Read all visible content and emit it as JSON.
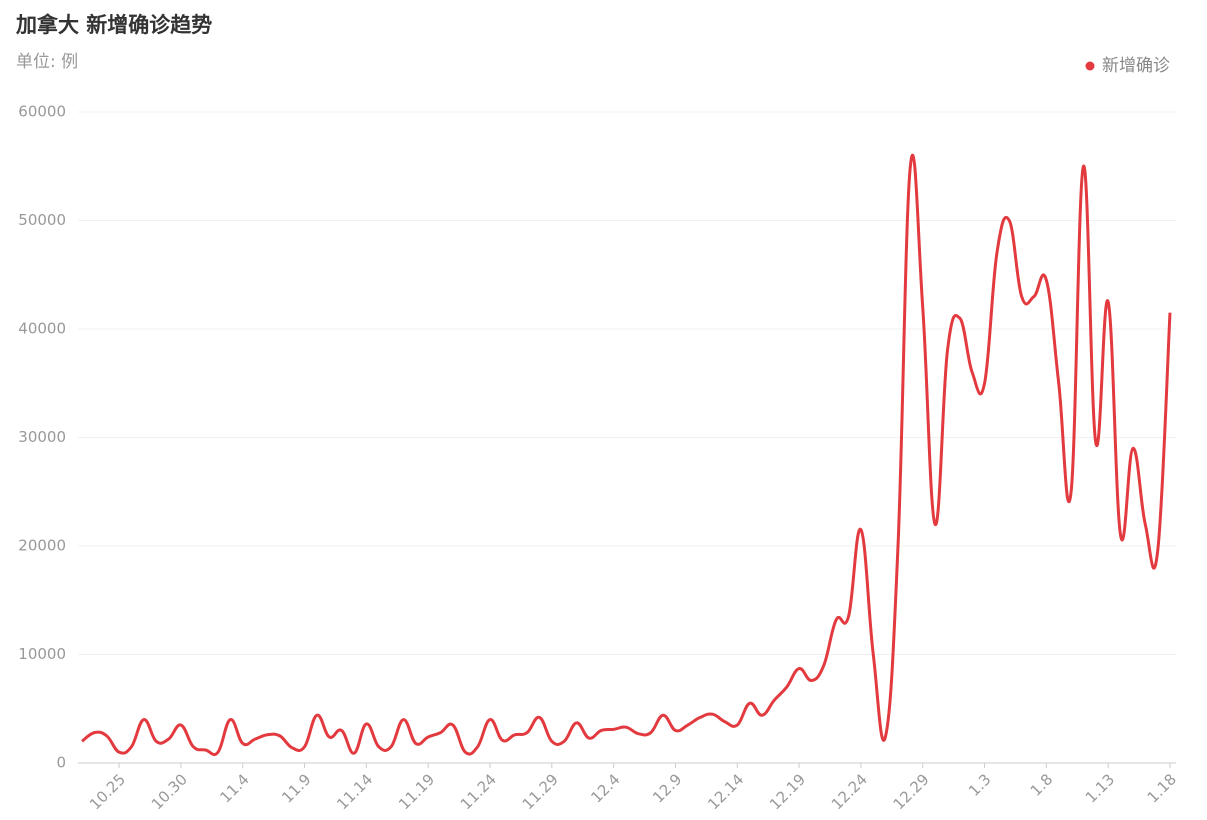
{
  "chart_data": {
    "type": "line",
    "title": "加拿大 新增确诊趋势",
    "subtitle": "单位: 例",
    "categories": [
      null,
      null,
      null,
      "10.25",
      null,
      null,
      null,
      null,
      "10.30",
      null,
      null,
      null,
      null,
      "11.4",
      null,
      null,
      null,
      null,
      "11.9",
      null,
      null,
      null,
      null,
      "11.14",
      null,
      null,
      null,
      null,
      "11.19",
      null,
      null,
      null,
      null,
      "11.24",
      null,
      null,
      null,
      null,
      "11.29",
      null,
      null,
      null,
      null,
      "12.4",
      null,
      null,
      null,
      null,
      "12.9",
      null,
      null,
      null,
      null,
      "12.14",
      null,
      null,
      null,
      null,
      "12.19",
      null,
      null,
      null,
      null,
      "12.24",
      null,
      null,
      null,
      null,
      "12.29",
      null,
      null,
      null,
      null,
      "1.3",
      null,
      null,
      null,
      null,
      "1.8",
      null,
      null,
      null,
      null,
      "1.13",
      null,
      null,
      null,
      null,
      "1.18"
    ],
    "series": [
      {
        "name": "新增确诊",
        "color": "#e23a3f",
        "values": [
          2000,
          2800,
          2500,
          1000,
          1500,
          4000,
          2000,
          2200,
          3500,
          1500,
          1200,
          1000,
          4000,
          1800,
          2200,
          2600,
          2500,
          1400,
          1500,
          4400,
          2400,
          3000,
          900,
          3600,
          1500,
          1500,
          4000,
          1800,
          2400,
          2800,
          3500,
          1000,
          1500,
          4000,
          2100,
          2600,
          2800,
          4200,
          2000,
          2000,
          3700,
          2300,
          3000,
          3100,
          3300,
          2700,
          2800,
          4400,
          3000,
          3500,
          4200,
          4500,
          3800,
          3500,
          5500,
          4400,
          5800,
          7000,
          8700,
          7600,
          9000,
          13200,
          13500,
          21500,
          10000,
          2500,
          20000,
          55000,
          42000,
          22000,
          38000,
          41000,
          36000,
          35000,
          47000,
          50000,
          43000,
          43000,
          44500,
          35000,
          25000,
          55000,
          29500,
          42500,
          21000,
          29000,
          22000,
          19500,
          41500
        ]
      }
    ],
    "ylim": [
      0,
      60000
    ],
    "yticks": [
      0,
      10000,
      20000,
      30000,
      40000,
      50000,
      60000
    ],
    "grid": true,
    "legend": "top-right"
  }
}
